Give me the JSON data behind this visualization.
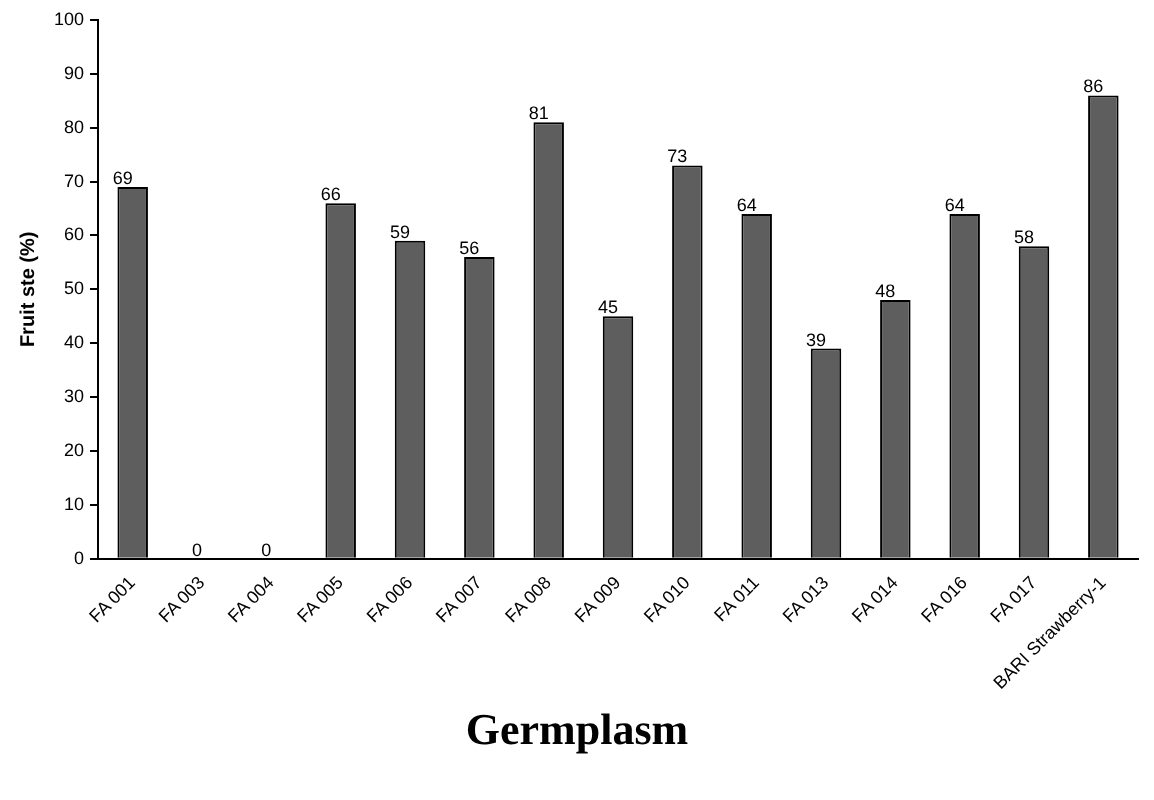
{
  "chart_data": {
    "type": "bar",
    "xlabel": "Germplasm",
    "ylabel": "Fruit ste (%)",
    "categories": [
      "FA 001",
      "FA 003",
      "FA 004",
      "FA 005",
      "FA 006",
      "FA 007",
      "FA 008",
      "FA 009",
      "FA 010",
      "FA 011",
      "FA 013",
      "FA 014",
      "FA 016",
      "FA 017",
      "BARI Strawberry-1"
    ],
    "values": [
      69,
      0,
      0,
      66,
      59,
      56,
      81,
      45,
      73,
      64,
      39,
      48,
      64,
      58,
      86
    ],
    "color": "#5e5e5e",
    "ylim": [
      0,
      100
    ],
    "yticks": [
      0,
      10,
      20,
      30,
      40,
      50,
      60,
      70,
      80,
      90,
      100
    ],
    "grid": false,
    "data_labels": true
  }
}
